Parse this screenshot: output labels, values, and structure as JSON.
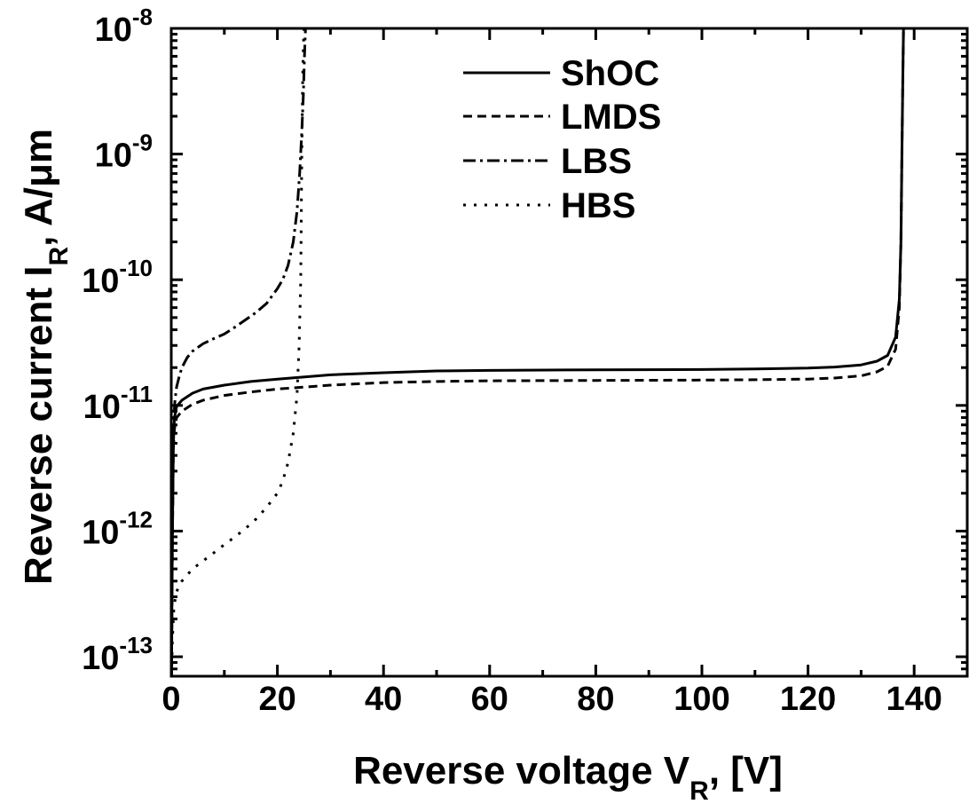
{
  "chart_data": {
    "type": "line",
    "xlabel": {
      "main": "Reverse voltage V",
      "sub": "R",
      "tail": ", [V]"
    },
    "ylabel": {
      "main": "Reverse current I",
      "sub": "R",
      "tail": ", A/μm"
    },
    "xlim": [
      0,
      150
    ],
    "ylim": [
      7e-14,
      1e-08
    ],
    "y_scale": "log",
    "x_ticks": [
      0,
      20,
      40,
      60,
      80,
      100,
      120,
      140
    ],
    "x_tick_labels": [
      "0",
      "20",
      "40",
      "60",
      "80",
      "100",
      "120",
      "140"
    ],
    "y_ticks": [
      {
        "base": "10",
        "exp": "-13",
        "value": 1e-13
      },
      {
        "base": "10",
        "exp": "-12",
        "value": 1e-12
      },
      {
        "base": "10",
        "exp": "-11",
        "value": 1e-11
      },
      {
        "base": "10",
        "exp": "-10",
        "value": 1e-10
      },
      {
        "base": "10",
        "exp": "-9",
        "value": 1e-09
      },
      {
        "base": "10",
        "exp": "-8",
        "value": 1e-08
      }
    ],
    "grid": false,
    "legend_position": "top-center",
    "series": [
      {
        "name": "ShOC",
        "style": "solid",
        "x": [
          0.05,
          0.2,
          0.4,
          0.6,
          1,
          2,
          4,
          6,
          10,
          15,
          20,
          30,
          40,
          50,
          60,
          80,
          100,
          110,
          120,
          125,
          130,
          133,
          135,
          136.5,
          137.2,
          137.5,
          137.7,
          137.9,
          138.0
        ],
        "y": [
          7e-14,
          8e-13,
          5e-12,
          8e-12,
          9.8e-12,
          1.1e-11,
          1.25e-11,
          1.35e-11,
          1.45e-11,
          1.55e-11,
          1.62e-11,
          1.75e-11,
          1.82e-11,
          1.88e-11,
          1.9e-11,
          1.92e-11,
          1.93e-11,
          1.95e-11,
          1.98e-11,
          2.02e-11,
          2.1e-11,
          2.25e-11,
          2.5e-11,
          3.5e-11,
          7e-11,
          2e-10,
          1e-09,
          5e-09,
          1e-08
        ]
      },
      {
        "name": "LMDS",
        "style": "dashed",
        "x": [
          0.05,
          0.2,
          0.4,
          0.6,
          1,
          2,
          4,
          6,
          10,
          15,
          20,
          30,
          40,
          50,
          60,
          80,
          100,
          110,
          120,
          125,
          130,
          133,
          135,
          136.5,
          137.2,
          137.5,
          137.7,
          137.9,
          138.0
        ],
        "y": [
          7e-14,
          7e-13,
          4.5e-12,
          6.5e-12,
          8e-12,
          9e-12,
          1.02e-11,
          1.1e-11,
          1.2e-11,
          1.28e-11,
          1.35e-11,
          1.45e-11,
          1.52e-11,
          1.55e-11,
          1.57e-11,
          1.58e-11,
          1.59e-11,
          1.6e-11,
          1.62e-11,
          1.65e-11,
          1.72e-11,
          1.85e-11,
          2.05e-11,
          2.8e-11,
          6e-11,
          2e-10,
          1e-09,
          5e-09,
          1e-08
        ]
      },
      {
        "name": "LBS",
        "style": "dashdot",
        "x": [
          0.05,
          0.2,
          0.4,
          0.7,
          1,
          1.5,
          2,
          3,
          4,
          6,
          8,
          10,
          12,
          14,
          16,
          18,
          20,
          21,
          22,
          23,
          23.7,
          24.2,
          24.6,
          24.9,
          25.1,
          25.3
        ],
        "y": [
          7e-14,
          1e-12,
          7e-12,
          1.1e-11,
          1.4e-11,
          1.7e-11,
          2e-11,
          2.4e-11,
          2.7e-11,
          3.1e-11,
          3.4e-11,
          3.7e-11,
          4.2e-11,
          4.8e-11,
          5.5e-11,
          6.5e-11,
          8.5e-11,
          1e-10,
          1.3e-10,
          2e-10,
          3.5e-10,
          7e-10,
          1.5e-09,
          3e-09,
          6e-09,
          1e-08
        ]
      },
      {
        "name": "HBS",
        "style": "dotted",
        "x": [
          0.05,
          0.2,
          0.5,
          1,
          2,
          4,
          6,
          8,
          10,
          12,
          14,
          16,
          18,
          20,
          21,
          22,
          23,
          23.7,
          24.1,
          24.4,
          24.6,
          24.8,
          25.0
        ],
        "y": [
          7e-14,
          1.3e-13,
          2.5e-13,
          3.3e-13,
          4e-13,
          5e-13,
          5.8e-13,
          6.7e-13,
          7.8e-13,
          9e-13,
          1.05e-12,
          1.25e-12,
          1.55e-12,
          2e-12,
          2.5e-12,
          3.5e-12,
          6e-12,
          1.2e-11,
          3e-11,
          1e-10,
          1e-09,
          5e-09,
          1e-08
        ]
      }
    ]
  }
}
